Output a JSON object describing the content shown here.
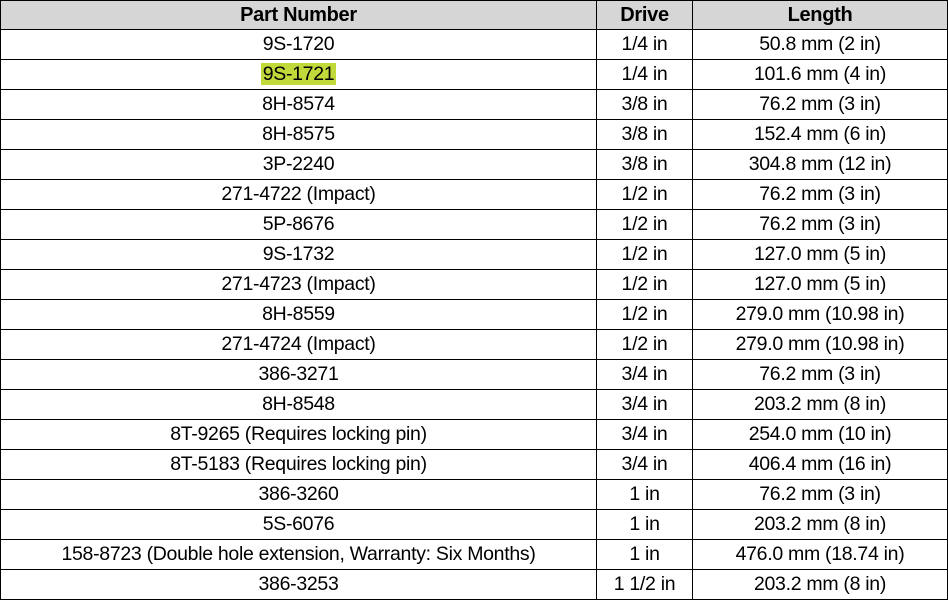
{
  "table": {
    "headers": [
      "Part Number",
      "Drive",
      "Length"
    ],
    "highlight_color": "#c2d93a",
    "rows": [
      {
        "part": "9S-1720",
        "drive": "1/4 in",
        "length": "50.8 mm (2 in)",
        "highlighted": false
      },
      {
        "part": "9S-1721",
        "drive": "1/4 in",
        "length": "101.6 mm (4 in)",
        "highlighted": true
      },
      {
        "part": "8H-8574",
        "drive": "3/8 in",
        "length": "76.2 mm (3 in)",
        "highlighted": false
      },
      {
        "part": "8H-8575",
        "drive": "3/8 in",
        "length": "152.4 mm (6 in)",
        "highlighted": false
      },
      {
        "part": "3P-2240",
        "drive": "3/8 in",
        "length": "304.8 mm (12 in)",
        "highlighted": false
      },
      {
        "part": "271-4722 (Impact)",
        "drive": "1/2 in",
        "length": "76.2 mm (3 in)",
        "highlighted": false
      },
      {
        "part": "5P-8676",
        "drive": "1/2 in",
        "length": "76.2 mm (3 in)",
        "highlighted": false
      },
      {
        "part": "9S-1732",
        "drive": "1/2 in",
        "length": "127.0 mm (5 in)",
        "highlighted": false
      },
      {
        "part": "271-4723 (Impact)",
        "drive": "1/2 in",
        "length": "127.0 mm (5 in)",
        "highlighted": false
      },
      {
        "part": "8H-8559",
        "drive": "1/2 in",
        "length": "279.0 mm (10.98 in)",
        "highlighted": false
      },
      {
        "part": "271-4724 (Impact)",
        "drive": "1/2 in",
        "length": "279.0 mm (10.98 in)",
        "highlighted": false
      },
      {
        "part": "386-3271",
        "drive": "3/4 in",
        "length": "76.2 mm (3 in)",
        "highlighted": false
      },
      {
        "part": "8H-8548",
        "drive": "3/4 in",
        "length": "203.2 mm (8 in)",
        "highlighted": false
      },
      {
        "part": "8T-9265 (Requires locking pin)",
        "drive": "3/4 in",
        "length": "254.0 mm (10 in)",
        "highlighted": false
      },
      {
        "part": "8T-5183 (Requires locking pin)",
        "drive": "3/4 in",
        "length": "406.4 mm (16 in)",
        "highlighted": false
      },
      {
        "part": "386-3260",
        "drive": "1 in",
        "length": "76.2 mm (3 in)",
        "highlighted": false
      },
      {
        "part": "5S-6076",
        "drive": "1 in",
        "length": "203.2 mm (8 in)",
        "highlighted": false
      },
      {
        "part": "158-8723 (Double hole extension, Warranty: Six Months)",
        "drive": "1 in",
        "length": "476.0 mm (18.74 in)",
        "highlighted": false
      },
      {
        "part": "386-3253",
        "drive": "1 1/2 in",
        "length": "203.2 mm (8 in)",
        "highlighted": false
      }
    ]
  }
}
